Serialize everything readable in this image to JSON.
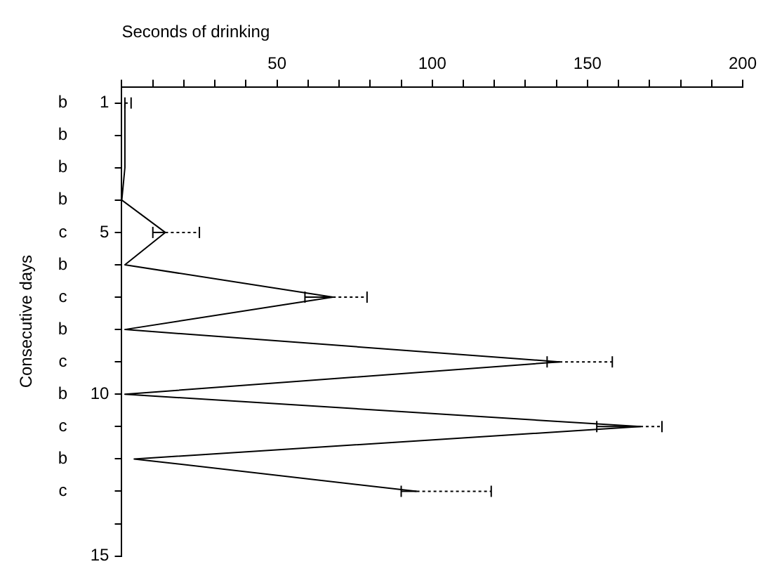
{
  "chart_data": {
    "type": "line",
    "orientation": "horizontal",
    "xlabel": "Seconds of drinking",
    "ylabel": "Consecutive days",
    "x": [
      1,
      2,
      3,
      4,
      5,
      6,
      7,
      8,
      9,
      10,
      11,
      12,
      13
    ],
    "series": [
      {
        "color": "#000000",
        "values": [
          1,
          1,
          1,
          0,
          14,
          1,
          68,
          1,
          141,
          1,
          167,
          4,
          95
        ],
        "errors": [
          [
            1,
            3
          ],
          null,
          null,
          null,
          [
            10,
            25
          ],
          null,
          [
            59,
            79
          ],
          null,
          [
            137,
            158
          ],
          null,
          [
            153,
            174
          ],
          null,
          [
            90,
            119
          ]
        ]
      }
    ],
    "xlim": [
      0,
      200
    ],
    "xticks": [
      {
        "value": 0,
        "label": null
      },
      {
        "value": 10,
        "label": null
      },
      {
        "value": 20,
        "label": null
      },
      {
        "value": 30,
        "label": null
      },
      {
        "value": 40,
        "label": null
      },
      50,
      {
        "value": 60,
        "label": null
      },
      {
        "value": 70,
        "label": null
      },
      {
        "value": 80,
        "label": null
      },
      {
        "value": 90,
        "label": null
      },
      100,
      {
        "value": 110,
        "label": null
      },
      {
        "value": 120,
        "label": null
      },
      {
        "value": 130,
        "label": null
      },
      {
        "value": 140,
        "label": null
      },
      150,
      {
        "value": 160,
        "label": null
      },
      {
        "value": 170,
        "label": null
      },
      {
        "value": 180,
        "label": null
      },
      {
        "value": 190,
        "label": null
      },
      200
    ],
    "ylim": [
      15,
      0.5
    ],
    "yticks": [
      1,
      {
        "value": 2,
        "label": null
      },
      {
        "value": 3,
        "label": null
      },
      {
        "value": 4,
        "label": null
      },
      5,
      {
        "value": 6,
        "label": null
      },
      {
        "value": 7,
        "label": null
      },
      {
        "value": 8,
        "label": null
      },
      {
        "value": 9,
        "label": null
      },
      10,
      {
        "value": 11,
        "label": null
      },
      {
        "value": 12,
        "label": null
      },
      {
        "value": 13,
        "label": null
      },
      {
        "value": 14,
        "label": null
      },
      15
    ],
    "annotations": [
      "b",
      "b",
      "b",
      "b",
      "c",
      "b",
      "c",
      "b",
      "c",
      "b",
      "c",
      "b",
      "c"
    ],
    "grid": false,
    "legend": false,
    "marker": "none",
    "line_style": "solid"
  }
}
